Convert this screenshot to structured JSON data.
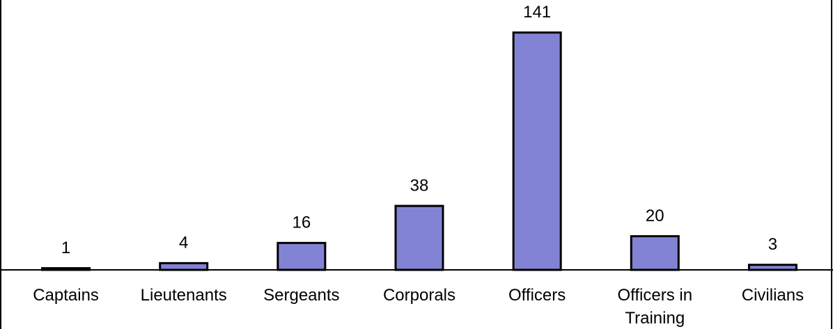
{
  "chart_data": {
    "type": "bar",
    "categories": [
      "Captains",
      "Lieutenants",
      "Sergeants",
      "Corporals",
      "Officers",
      "Officers in Training",
      "Civilians"
    ],
    "values": [
      1,
      4,
      16,
      38,
      141,
      20,
      3
    ],
    "color": "#8383d6",
    "ylim": [
      0,
      160
    ]
  }
}
